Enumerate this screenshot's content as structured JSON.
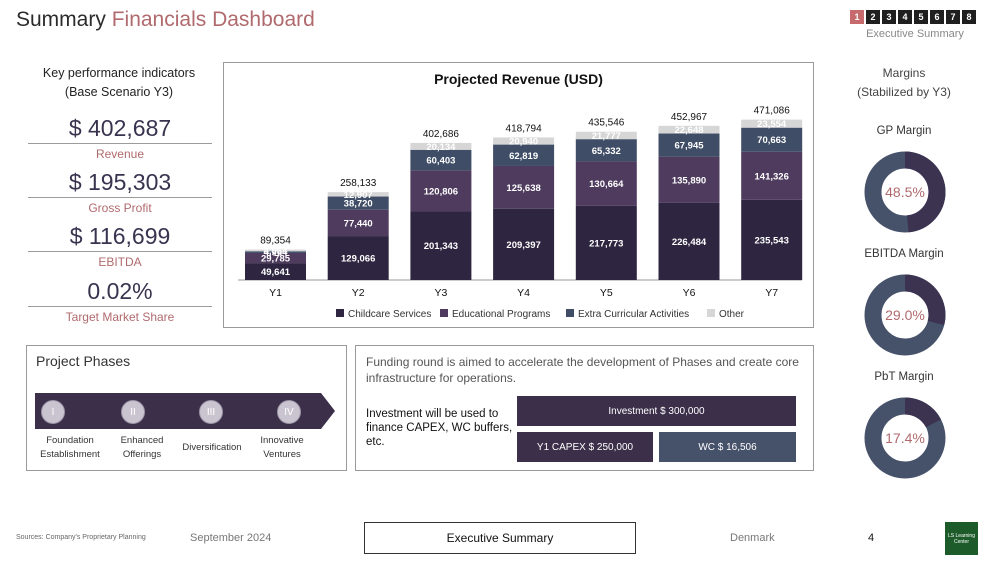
{
  "title": {
    "main": "Summary",
    "accent": "Financials Dashboard"
  },
  "pager": {
    "pages": [
      "1",
      "2",
      "3",
      "4",
      "5",
      "6",
      "7",
      "8"
    ],
    "active_index": 0,
    "label": "Executive Summary"
  },
  "kpi": {
    "heading_line1": "Key performance indicators",
    "heading_line2": "(Base Scenario Y3)",
    "items": [
      {
        "value": "$ 402,687",
        "label": "Revenue"
      },
      {
        "value": "$ 195,303",
        "label": "Gross Profit"
      },
      {
        "value": "$ 116,699",
        "label": "EBITDA"
      },
      {
        "value": "0.02%",
        "label": "Target Market Share"
      }
    ]
  },
  "chart_data": {
    "type": "bar",
    "stacked": true,
    "title": "Projected Revenue (USD)",
    "categories": [
      "Y1",
      "Y2",
      "Y3",
      "Y4",
      "Y5",
      "Y6",
      "Y7"
    ],
    "series": [
      {
        "name": "Childcare Services",
        "values": [
          49641,
          129066,
          201343,
          209397,
          217773,
          226484,
          235543
        ],
        "color": "#2e2640"
      },
      {
        "name": "Educational Programs",
        "values": [
          29785,
          77440,
          120806,
          125638,
          130664,
          135890,
          141326
        ],
        "color": "#4e3b5e"
      },
      {
        "name": "Extra Curricular Activities",
        "values": [
          4964,
          38720,
          60403,
          62819,
          65332,
          67945,
          70663
        ],
        "color": "#3f4d66"
      },
      {
        "name": "Other",
        "values": [
          4964,
          12907,
          20134,
          20940,
          21777,
          22648,
          23554
        ],
        "color": "#d6d6d6"
      }
    ],
    "totals": [
      89354,
      258133,
      402686,
      418794,
      435546,
      452967,
      471086
    ],
    "ylim": [
      0,
      520000
    ],
    "legend": "bottom",
    "xlabel": "",
    "ylabel": ""
  },
  "margins": {
    "heading_line1": "Margins",
    "heading_line2": "(Stabilized by Y3)",
    "items": [
      {
        "label": "GP Margin",
        "value": "48.5%",
        "fraction": 0.485
      },
      {
        "label": "EBITDA Margin",
        "value": "29.0%",
        "fraction": 0.29
      },
      {
        "label": "PbT Margin",
        "value": "17.4%",
        "fraction": 0.174
      }
    ],
    "colors": {
      "filled": "#3b3350",
      "remainder": "#46516a"
    }
  },
  "phases": {
    "title": "Project Phases",
    "items": [
      {
        "numeral": "I",
        "label_line1": "Foundation",
        "label_line2": "Establishment"
      },
      {
        "numeral": "II",
        "label_line1": "Enhanced",
        "label_line2": "Offerings"
      },
      {
        "numeral": "III",
        "label_line1": "Diversification",
        "label_line2": ""
      },
      {
        "numeral": "IV",
        "label_line1": "Innovative",
        "label_line2": "Ventures"
      }
    ]
  },
  "funding": {
    "text": "Funding round is aimed to accelerate the development of Phases and create core infrastructure for operations.",
    "invest_text": "Investment will be used to finance CAPEX, WC buffers, etc.",
    "investment": "Investment $ 300,000",
    "capex": "Y1 CAPEX $ 250,000",
    "wc": "WC $ 16,506"
  },
  "footer": {
    "sources": "Sources: Company's Proprietary Planning",
    "date": "September 2024",
    "section": "Executive Summary",
    "country": "Denmark",
    "page": "4",
    "logo": "LS Learning Center"
  }
}
